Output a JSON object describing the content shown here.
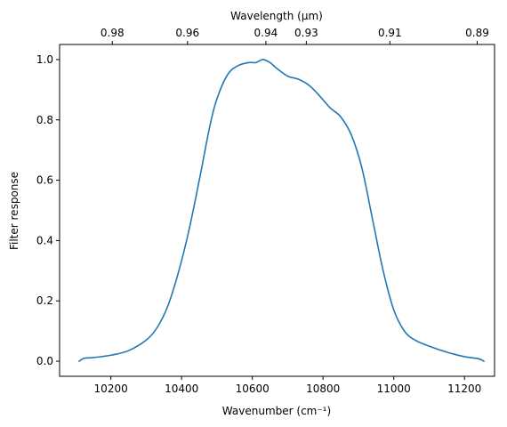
{
  "chart_data": {
    "type": "line",
    "xlabel": "Wavenumber (cm⁻¹)",
    "ylabel": "Filter response",
    "top_xlabel": "Wavelength (μm)",
    "xlim": [
      10055,
      11285
    ],
    "ylim": [
      -0.05,
      1.05
    ],
    "x_ticks": [
      10200,
      10400,
      10600,
      10800,
      11000,
      11200
    ],
    "y_ticks": [
      0.0,
      0.2,
      0.4,
      0.6,
      0.8,
      1.0
    ],
    "y_tick_labels": [
      "0.0",
      "0.2",
      "0.4",
      "0.6",
      "0.8",
      "1.0"
    ],
    "top_ticks": [
      {
        "label": "0.98",
        "value": 0.98
      },
      {
        "label": "0.96",
        "value": 0.96
      },
      {
        "label": "0.94",
        "value": 0.94
      },
      {
        "label": "0.93",
        "value": 0.93
      },
      {
        "label": "0.91",
        "value": 0.91
      },
      {
        "label": "0.89",
        "value": 0.89
      }
    ],
    "grid": false,
    "line_color": "#1f77b4",
    "series": [
      {
        "x": [
          10110,
          10125,
          10150,
          10200,
          10250,
          10300,
          10330,
          10360,
          10390,
          10420,
          10450,
          10480,
          10500,
          10530,
          10560,
          10590,
          10610,
          10630,
          10650,
          10670,
          10700,
          10730,
          10760,
          10790,
          10820,
          10850,
          10880,
          10910,
          10940,
          10970,
          11000,
          11030,
          11060,
          11100,
          11150,
          11200,
          11240,
          11255
        ],
        "y": [
          0.0,
          0.01,
          0.012,
          0.02,
          0.035,
          0.07,
          0.11,
          0.18,
          0.29,
          0.43,
          0.6,
          0.78,
          0.87,
          0.95,
          0.98,
          0.99,
          0.99,
          1.0,
          0.99,
          0.97,
          0.945,
          0.935,
          0.915,
          0.88,
          0.84,
          0.81,
          0.75,
          0.64,
          0.47,
          0.3,
          0.17,
          0.1,
          0.07,
          0.05,
          0.03,
          0.015,
          0.008,
          0.0
        ]
      }
    ]
  }
}
